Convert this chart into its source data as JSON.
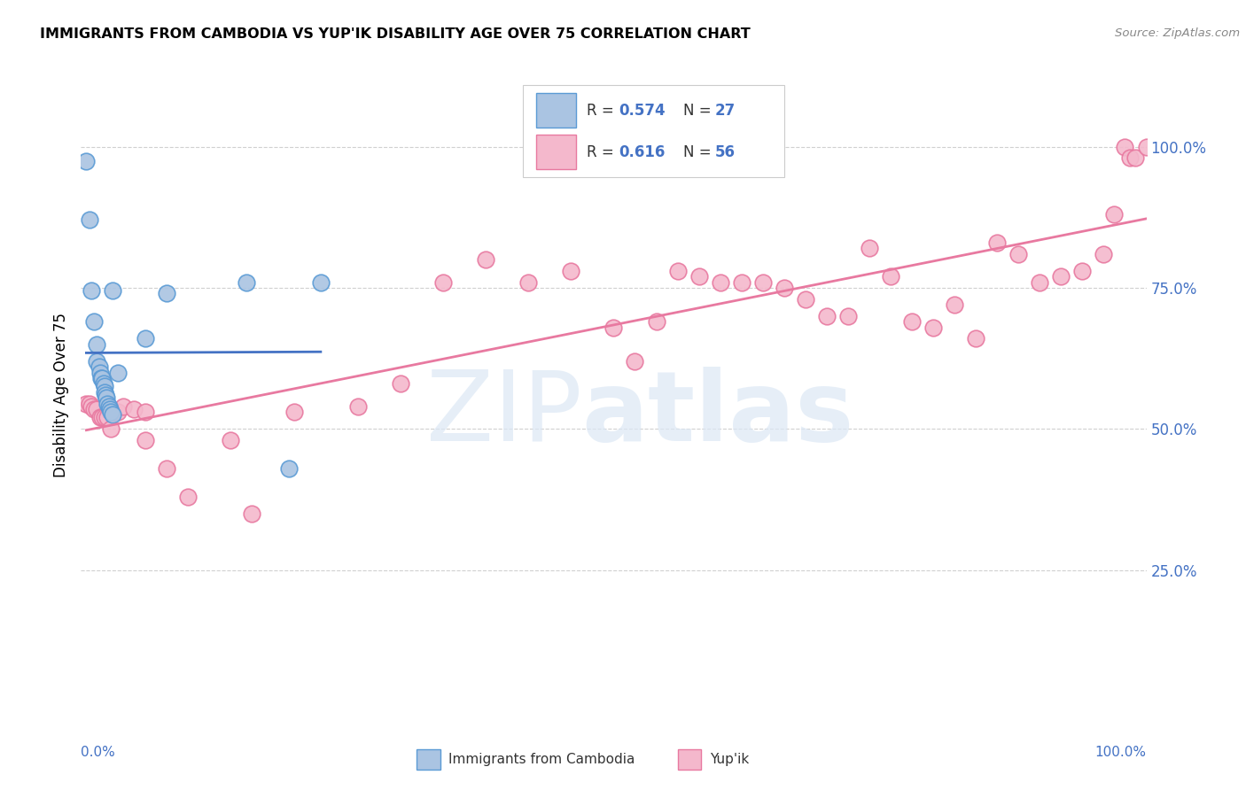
{
  "title": "IMMIGRANTS FROM CAMBODIA VS YUP'IK DISABILITY AGE OVER 75 CORRELATION CHART",
  "source": "Source: ZipAtlas.com",
  "ylabel": "Disability Age Over 75",
  "watermark_zip": "ZIP",
  "watermark_atlas": "atlas",
  "legend_r_cambodia": "0.574",
  "legend_n_cambodia": "27",
  "legend_r_yupik": "0.616",
  "legend_n_yupik": "56",
  "ytick_labels": [
    "25.0%",
    "50.0%",
    "75.0%",
    "100.0%"
  ],
  "ytick_values": [
    0.25,
    0.5,
    0.75,
    1.0
  ],
  "xlim": [
    0.0,
    1.0
  ],
  "ylim": [
    0.0,
    1.12
  ],
  "cambodia_color": "#aac4e2",
  "cambodia_edge_color": "#5b9bd5",
  "cambodia_line_color": "#4472c4",
  "yupik_color": "#f4b8cc",
  "yupik_edge_color": "#e879a0",
  "yupik_line_color": "#e879a0",
  "background_color": "#ffffff",
  "grid_color": "#d0d0d0",
  "right_label_color": "#4472c4",
  "cambodia_x": [
    0.005,
    0.008,
    0.01,
    0.012,
    0.015,
    0.015,
    0.017,
    0.018,
    0.019,
    0.02,
    0.021,
    0.022,
    0.022,
    0.023,
    0.024,
    0.025,
    0.026,
    0.027,
    0.028,
    0.03,
    0.035,
    0.06,
    0.08,
    0.155,
    0.195,
    0.225,
    0.03
  ],
  "cambodia_y": [
    0.975,
    0.87,
    0.745,
    0.69,
    0.65,
    0.62,
    0.61,
    0.6,
    0.59,
    0.59,
    0.58,
    0.575,
    0.565,
    0.56,
    0.555,
    0.545,
    0.54,
    0.535,
    0.53,
    0.525,
    0.6,
    0.66,
    0.74,
    0.76,
    0.43,
    0.76,
    0.745
  ],
  "yupik_x": [
    0.005,
    0.008,
    0.01,
    0.012,
    0.015,
    0.018,
    0.02,
    0.022,
    0.025,
    0.028,
    0.03,
    0.035,
    0.04,
    0.05,
    0.06,
    0.06,
    0.08,
    0.1,
    0.14,
    0.16,
    0.2,
    0.26,
    0.3,
    0.34,
    0.38,
    0.42,
    0.46,
    0.5,
    0.52,
    0.54,
    0.56,
    0.58,
    0.6,
    0.62,
    0.64,
    0.66,
    0.68,
    0.7,
    0.72,
    0.74,
    0.76,
    0.78,
    0.8,
    0.82,
    0.84,
    0.86,
    0.88,
    0.9,
    0.92,
    0.94,
    0.96,
    0.97,
    0.98,
    0.985,
    0.99,
    1.0
  ],
  "yupik_y": [
    0.545,
    0.545,
    0.54,
    0.535,
    0.535,
    0.52,
    0.52,
    0.52,
    0.52,
    0.5,
    0.53,
    0.53,
    0.54,
    0.535,
    0.48,
    0.53,
    0.43,
    0.38,
    0.48,
    0.35,
    0.53,
    0.54,
    0.58,
    0.76,
    0.8,
    0.76,
    0.78,
    0.68,
    0.62,
    0.69,
    0.78,
    0.77,
    0.76,
    0.76,
    0.76,
    0.75,
    0.73,
    0.7,
    0.7,
    0.82,
    0.77,
    0.69,
    0.68,
    0.72,
    0.66,
    0.83,
    0.81,
    0.76,
    0.77,
    0.78,
    0.81,
    0.88,
    1.0,
    0.98,
    0.98,
    1.0
  ]
}
